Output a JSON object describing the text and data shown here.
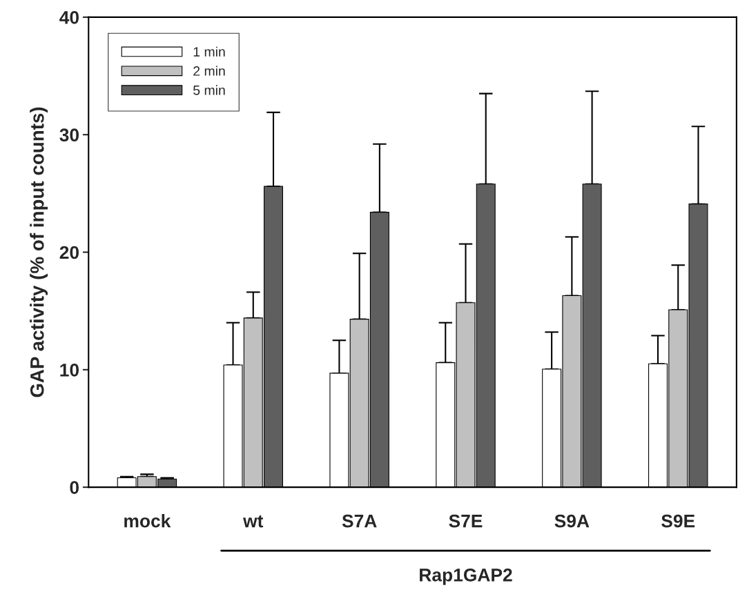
{
  "chart_data": {
    "type": "bar",
    "ylabel": "GAP activity (% of input counts)",
    "categories": [
      "mock",
      "wt",
      "S7A",
      "S7E",
      "S9A",
      "S9E"
    ],
    "series": [
      {
        "name": "1 min",
        "color": "#ffffff",
        "values": [
          0.8,
          10.4,
          9.7,
          10.6,
          10.05,
          10.5
        ],
        "errors": [
          [
            0.8,
            0.9
          ],
          [
            10.4,
            14.0
          ],
          [
            9.7,
            12.5
          ],
          [
            10.6,
            14.0
          ],
          [
            10.05,
            13.2
          ],
          [
            10.5,
            12.9
          ]
        ]
      },
      {
        "name": "2 min",
        "color": "#c0c0c0",
        "values": [
          0.9,
          14.4,
          14.3,
          15.7,
          16.3,
          15.1
        ],
        "errors": [
          [
            0.9,
            1.1
          ],
          [
            14.4,
            16.6
          ],
          [
            14.3,
            19.9
          ],
          [
            15.7,
            20.7
          ],
          [
            16.3,
            21.3
          ],
          [
            15.1,
            18.9
          ]
        ]
      },
      {
        "name": "5 min",
        "color": "#5f5f5f",
        "values": [
          0.7,
          25.6,
          23.4,
          25.8,
          25.8,
          24.1
        ],
        "errors": [
          [
            0.7,
            0.8
          ],
          [
            25.6,
            31.9
          ],
          [
            23.4,
            29.2
          ],
          [
            25.8,
            33.5
          ],
          [
            25.8,
            33.7
          ],
          [
            24.1,
            30.7
          ]
        ]
      }
    ],
    "ylim": [
      0,
      40
    ],
    "yticks": [
      0,
      10,
      20,
      30,
      40
    ],
    "grid": false,
    "legend": "top left",
    "annotations": [
      "Rap1GAP2"
    ]
  }
}
